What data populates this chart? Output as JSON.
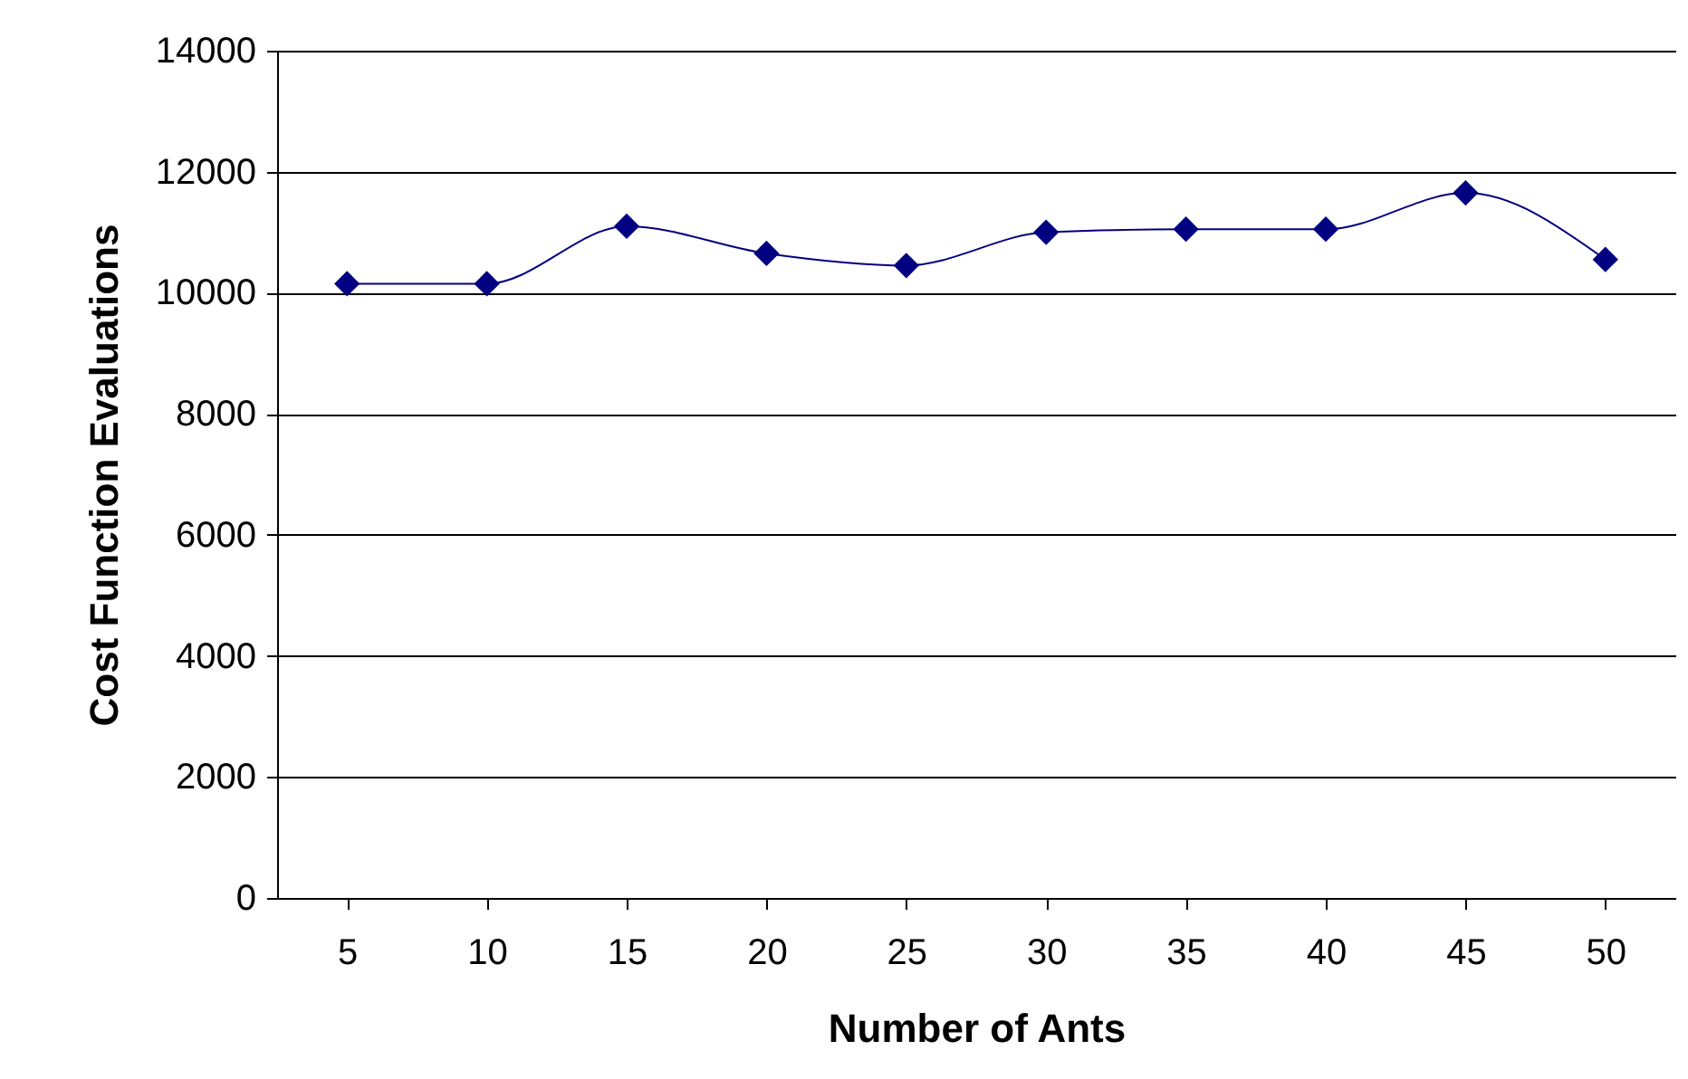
{
  "chart_data": {
    "type": "line",
    "xlabel": "Number of Ants",
    "ylabel": "Cost Function Evaluations",
    "categories": [
      "5",
      "10",
      "15",
      "20",
      "25",
      "30",
      "35",
      "40",
      "45",
      "50"
    ],
    "series": [
      {
        "color": "#000080",
        "values": [
          10150,
          10150,
          11100,
          10650,
          10450,
          11000,
          11050,
          11050,
          11650,
          10550
        ]
      }
    ],
    "ylim": [
      0,
      14000
    ],
    "yticks": [
      0,
      2000,
      4000,
      6000,
      8000,
      10000,
      12000,
      14000
    ],
    "grid": "y",
    "marker": "diamond"
  }
}
